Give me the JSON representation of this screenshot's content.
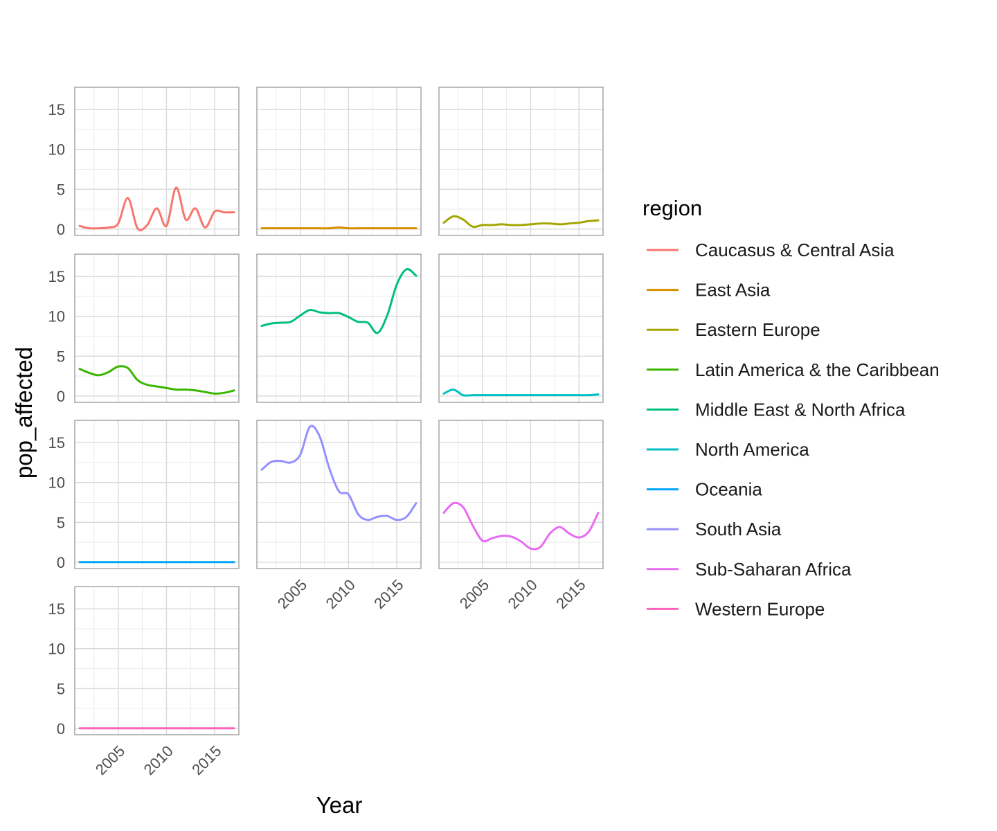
{
  "chart_data": {
    "type": "line",
    "xlabel": "Year",
    "ylabel": "pop_affected",
    "xlim": [
      2000.5,
      2017.5
    ],
    "ylim": [
      -0.8,
      17.8
    ],
    "x_ticks": [
      2005,
      2010,
      2015
    ],
    "y_ticks": [
      0,
      5,
      10,
      15
    ],
    "grid": true,
    "legend": {
      "title": "region",
      "position": "right",
      "entries": [
        "Caucasus & Central Asia",
        "East Asia",
        "Eastern Europe",
        "Latin America & the Caribbean",
        "Middle East & North Africa",
        "North America",
        "Oceania",
        "South Asia",
        "Sub-Saharan Africa",
        "Western Europe"
      ]
    },
    "x": [
      2001,
      2002,
      2003,
      2004,
      2005,
      2006,
      2007,
      2008,
      2009,
      2010,
      2011,
      2012,
      2013,
      2014,
      2015,
      2016,
      2017
    ],
    "series": [
      {
        "name": "Caucasus & Central Asia",
        "color": "#F8766D",
        "values": [
          0.4,
          0.1,
          0.1,
          0.2,
          0.7,
          3.9,
          0.1,
          0.5,
          2.6,
          0.4,
          5.2,
          1.2,
          2.6,
          0.2,
          2.2,
          2.1,
          2.1
        ]
      },
      {
        "name": "East Asia",
        "color": "#D89000",
        "values": [
          0.1,
          0.1,
          0.1,
          0.1,
          0.1,
          0.1,
          0.1,
          0.1,
          0.2,
          0.1,
          0.1,
          0.1,
          0.1,
          0.1,
          0.1,
          0.1,
          0.1
        ]
      },
      {
        "name": "Eastern Europe",
        "color": "#A3A500",
        "values": [
          0.8,
          1.6,
          1.2,
          0.3,
          0.5,
          0.5,
          0.6,
          0.5,
          0.5,
          0.6,
          0.7,
          0.7,
          0.6,
          0.7,
          0.8,
          1.0,
          1.1
        ]
      },
      {
        "name": "Latin America & the Caribbean",
        "color": "#39B600",
        "values": [
          3.4,
          2.9,
          2.6,
          3.0,
          3.7,
          3.5,
          2.0,
          1.4,
          1.2,
          1.0,
          0.8,
          0.8,
          0.7,
          0.5,
          0.3,
          0.4,
          0.7
        ]
      },
      {
        "name": "Middle East & North Africa",
        "color": "#00BF7D",
        "values": [
          8.8,
          9.1,
          9.2,
          9.3,
          10.1,
          10.8,
          10.5,
          10.4,
          10.4,
          9.9,
          9.3,
          9.2,
          7.9,
          10.1,
          14.0,
          15.9,
          15.1
        ]
      },
      {
        "name": "North America",
        "color": "#00BFC4",
        "values": [
          0.3,
          0.8,
          0.1,
          0.1,
          0.1,
          0.1,
          0.1,
          0.1,
          0.1,
          0.1,
          0.1,
          0.1,
          0.1,
          0.1,
          0.1,
          0.1,
          0.2
        ]
      },
      {
        "name": "Oceania",
        "color": "#00A5FF",
        "values": [
          0.0,
          0.0,
          0.0,
          0.0,
          0.0,
          0.0,
          0.0,
          0.0,
          0.0,
          0.0,
          0.0,
          0.0,
          0.0,
          0.0,
          0.0,
          0.0,
          0.0
        ]
      },
      {
        "name": "South Asia",
        "color": "#9590FF",
        "values": [
          11.6,
          12.6,
          12.7,
          12.5,
          13.5,
          17.0,
          15.8,
          11.8,
          8.9,
          8.5,
          6.0,
          5.3,
          5.7,
          5.8,
          5.3,
          5.7,
          7.4
        ]
      },
      {
        "name": "Sub-Saharan Africa",
        "color": "#E76BF3",
        "values": [
          6.2,
          7.4,
          6.9,
          4.6,
          2.7,
          3.0,
          3.3,
          3.2,
          2.6,
          1.7,
          1.9,
          3.6,
          4.4,
          3.6,
          3.1,
          3.8,
          6.2
        ]
      },
      {
        "name": "Western Europe",
        "color": "#FF62BC",
        "values": [
          0.0,
          0.0,
          0.0,
          0.0,
          0.0,
          0.0,
          0.0,
          0.0,
          0.0,
          0.0,
          0.0,
          0.0,
          0.0,
          0.0,
          0.0,
          0.0,
          0.0
        ]
      }
    ]
  }
}
